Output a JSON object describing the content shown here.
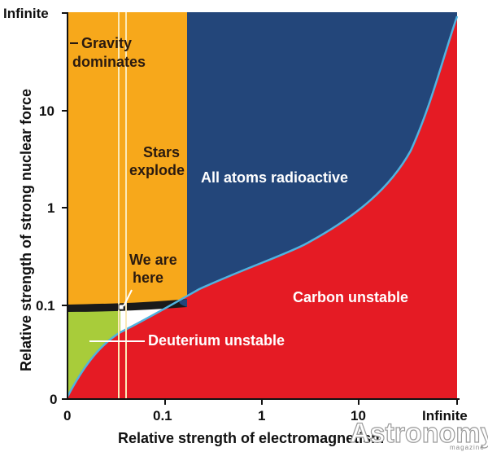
{
  "diagram": {
    "y_axis": {
      "title": "Relative strength of strong nuclear force",
      "ticks": [
        "0",
        "0.1",
        "1",
        "10",
        "Infinite"
      ]
    },
    "x_axis": {
      "title": "Relative strength of electromagnetism",
      "ticks": [
        "0",
        "0.1",
        "1",
        "10",
        "Infinite"
      ]
    },
    "regions": {
      "gravity": [
        "Gravity",
        "dominates"
      ],
      "stars": [
        "Stars",
        "explode"
      ],
      "radioactive": "All atoms radioactive",
      "carbon": "Carbon unstable",
      "deuterium": "Deuterium unstable",
      "here": [
        "We are",
        "here"
      ]
    },
    "colors": {
      "orange": "#f7a81b",
      "navy": "#23467a",
      "red": "#e51b24",
      "green": "#a8cc3a",
      "boundary": "#4fb3e0",
      "band": "#1a1a1a"
    }
  },
  "logo": {
    "name": "Astronomy",
    "sub": "magazine"
  }
}
